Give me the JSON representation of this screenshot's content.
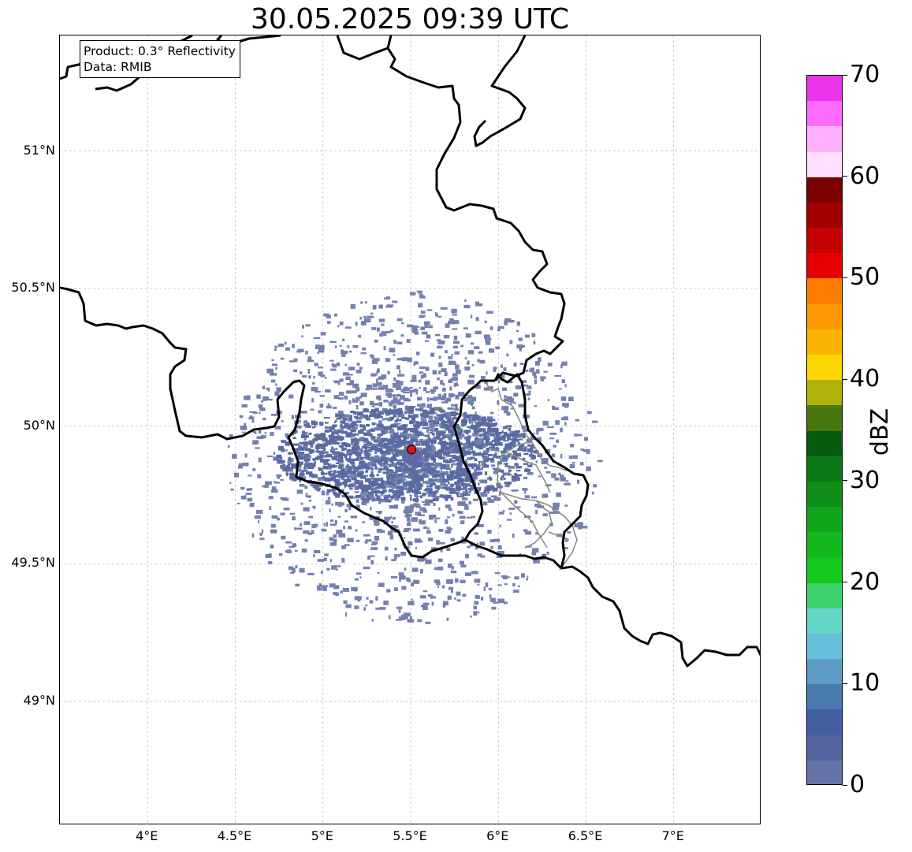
{
  "title": "30.05.2025 09:39 UTC",
  "info": {
    "product": "Product: 0.3° Reflectivity",
    "data_source": "Data: RMIB"
  },
  "axes": {
    "lon_range": [
      3.5,
      7.5
    ],
    "lat_range": [
      48.55,
      51.42
    ],
    "x_ticks": [
      {
        "value": 4.0,
        "label": "4°E"
      },
      {
        "value": 4.5,
        "label": "4.5°E"
      },
      {
        "value": 5.0,
        "label": "5°E"
      },
      {
        "value": 5.5,
        "label": "5.5°E"
      },
      {
        "value": 6.0,
        "label": "6°E"
      },
      {
        "value": 6.5,
        "label": "6.5°E"
      },
      {
        "value": 7.0,
        "label": "7°E"
      }
    ],
    "y_ticks": [
      {
        "value": 51.0,
        "label": "51°N"
      },
      {
        "value": 50.5,
        "label": "50.5°N"
      },
      {
        "value": 50.0,
        "label": "50°N"
      },
      {
        "value": 49.5,
        "label": "49.5°N"
      },
      {
        "value": 49.0,
        "label": "49°N"
      }
    ],
    "grid": true
  },
  "radar_site": {
    "lon": 5.505,
    "lat": 49.915,
    "color": "#e01010"
  },
  "colorbar": {
    "title": "dBZ",
    "range": [
      0,
      70
    ],
    "step": 2.5,
    "tick_values": [
      0,
      10,
      20,
      30,
      40,
      50,
      60,
      70
    ],
    "tick_labels": [
      "0",
      "10",
      "20",
      "30",
      "40",
      "50",
      "60",
      "70"
    ],
    "colors": [
      "#6573a6",
      "#54659f",
      "#4460a3",
      "#4b7ab0",
      "#5d9dc6",
      "#68bfd9",
      "#63d6c6",
      "#3fd36f",
      "#14c91f",
      "#12b81e",
      "#10a51a",
      "#0f8f18",
      "#0b7915",
      "#065b10",
      "#48770f",
      "#afb209",
      "#ffd700",
      "#fdb400",
      "#fd9800",
      "#fd7e00",
      "#e60000",
      "#c50000",
      "#a20000",
      "#7b0000",
      "#ffdfff",
      "#ffb1ff",
      "#ff6aff",
      "#ea33ea"
    ]
  },
  "colors": {
    "echo": "#6573a6",
    "echo_strong": "#2fae3a",
    "border": "#000000",
    "region_border": "#8a8a8a",
    "grid": "#b8b8b8"
  }
}
